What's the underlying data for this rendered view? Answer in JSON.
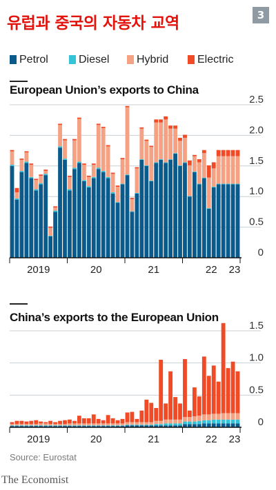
{
  "header": {
    "title": "유럽과 중국의 자동차 교역",
    "figure_number": "3"
  },
  "legend": [
    {
      "label": "Petrol",
      "color": "#0b5a8c"
    },
    {
      "label": "Diesel",
      "color": "#35c3d8"
    },
    {
      "label": "Hybrid",
      "color": "#f5a183"
    },
    {
      "label": "Electric",
      "color": "#f04a26"
    }
  ],
  "chart_data": [
    {
      "type": "bar",
      "stacked": true,
      "title": "European Union’s exports to China",
      "xlabel": "",
      "ylabel": "",
      "ylim": [
        0,
        2.5
      ],
      "yticks": [
        0,
        0.5,
        1.0,
        1.5,
        2.0,
        2.5
      ],
      "ytick_labels": [
        "0",
        "0.5",
        "1.0",
        "1.5",
        "2.0",
        "2.5"
      ],
      "x_labels": [
        "2019",
        "20",
        "21",
        "22",
        "23"
      ],
      "x_label_index": [
        0,
        12,
        24,
        36,
        48
      ],
      "grid": true,
      "colors": {
        "Petrol": "#0b5a8c",
        "Diesel": "#35c3d8",
        "Hybrid": "#f5a183",
        "Electric": "#f04a26"
      },
      "series": [
        {
          "name": "Petrol",
          "values": [
            1.5,
            0.95,
            1.4,
            1.55,
            1.3,
            1.1,
            1.2,
            1.35,
            0.35,
            0.75,
            1.8,
            1.6,
            1.1,
            1.45,
            1.55,
            1.25,
            1.15,
            1.3,
            1.45,
            1.4,
            1.3,
            1.05,
            0.9,
            1.2,
            1.35,
            0.75,
            1.05,
            1.6,
            1.5,
            1.25,
            1.55,
            1.6,
            1.55,
            1.6,
            1.7,
            1.5,
            1.55,
            1.0,
            1.4,
            1.2,
            1.3,
            0.8,
            1.15,
            1.2,
            1.2,
            1.2,
            1.2,
            1.2
          ]
        },
        {
          "name": "Diesel",
          "values": [
            0.02,
            0.02,
            0.02,
            0.02,
            0.02,
            0.02,
            0.02,
            0.02,
            0.01,
            0.02,
            0.02,
            0.02,
            0.02,
            0.02,
            0.02,
            0.02,
            0.02,
            0.02,
            0.02,
            0.02,
            0.02,
            0.02,
            0.01,
            0.01,
            0.01,
            0.01,
            0.01,
            0.01,
            0.01,
            0.01,
            0.01,
            0.01,
            0.01,
            0.01,
            0.01,
            0.01,
            0.01,
            0.01,
            0.01,
            0.01,
            0.01,
            0.01,
            0.01,
            0.01,
            0.01,
            0.01,
            0.01,
            0.01
          ]
        },
        {
          "name": "Hybrid",
          "values": [
            0.22,
            0.1,
            0.18,
            0.15,
            0.2,
            0.15,
            0.12,
            0.05,
            0.13,
            0.05,
            0.35,
            0.3,
            0.2,
            0.45,
            0.7,
            0.25,
            0.15,
            0.2,
            0.7,
            0.7,
            0.5,
            0.3,
            0.25,
            0.4,
            1.1,
            0.2,
            0.4,
            0.5,
            0.4,
            0.55,
            0.65,
            0.6,
            0.7,
            0.5,
            0.4,
            0.4,
            0.4,
            0.5,
            0.25,
            0.35,
            0.4,
            0.5,
            0.3,
            0.45,
            0.45,
            0.45,
            0.45,
            0.45
          ]
        },
        {
          "name": "Electric",
          "values": [
            0.02,
            0.07,
            0.02,
            0.02,
            0.02,
            0.02,
            0.02,
            0.02,
            0.02,
            0.02,
            0.02,
            0.02,
            0.02,
            0.02,
            0.02,
            0.02,
            0.02,
            0.02,
            0.02,
            0.02,
            0.02,
            0.02,
            0.02,
            0.02,
            0.02,
            0.02,
            0.02,
            0.02,
            0.02,
            0.02,
            0.05,
            0.05,
            0.05,
            0.05,
            0.05,
            0.05,
            0.05,
            0.08,
            0.02,
            0.05,
            0.05,
            0.2,
            0.1,
            0.1,
            0.1,
            0.1,
            0.1,
            0.1
          ]
        }
      ]
    },
    {
      "type": "bar",
      "stacked": true,
      "title": "China’s exports to the European Union",
      "xlabel": "",
      "ylabel": "",
      "ylim": [
        0,
        1.5
      ],
      "yticks": [
        0,
        0.5,
        1.0,
        1.5
      ],
      "ytick_labels": [
        "0",
        "0.5",
        "1.0",
        "1.5"
      ],
      "x_labels": [
        "2019",
        "20",
        "21",
        "22",
        "23"
      ],
      "x_label_index": [
        0,
        12,
        24,
        36,
        48
      ],
      "grid": true,
      "colors": {
        "Petrol": "#0b5a8c",
        "Diesel": "#35c3d8",
        "Hybrid": "#f5a183",
        "Electric": "#f04a26"
      },
      "series": [
        {
          "name": "Petrol",
          "values": [
            0.02,
            0.02,
            0.02,
            0.02,
            0.02,
            0.02,
            0.02,
            0.02,
            0.02,
            0.02,
            0.02,
            0.02,
            0.02,
            0.02,
            0.02,
            0.02,
            0.02,
            0.02,
            0.02,
            0.02,
            0.02,
            0.02,
            0.02,
            0.02,
            0.03,
            0.03,
            0.03,
            0.03,
            0.03,
            0.03,
            0.03,
            0.03,
            0.03,
            0.03,
            0.03,
            0.03,
            0.05,
            0.05,
            0.05,
            0.05,
            0.06,
            0.06,
            0.06,
            0.06,
            0.06,
            0.06,
            0.06,
            0.06
          ]
        },
        {
          "name": "Diesel",
          "values": [
            0.01,
            0.01,
            0.01,
            0.01,
            0.01,
            0.01,
            0.01,
            0.01,
            0.01,
            0.01,
            0.01,
            0.01,
            0.01,
            0.01,
            0.01,
            0.01,
            0.01,
            0.01,
            0.01,
            0.01,
            0.01,
            0.01,
            0.01,
            0.01,
            0.01,
            0.01,
            0.01,
            0.01,
            0.01,
            0.01,
            0.02,
            0.02,
            0.03,
            0.03,
            0.03,
            0.03,
            0.04,
            0.04,
            0.04,
            0.05,
            0.05,
            0.05,
            0.06,
            0.06,
            0.06,
            0.06,
            0.06,
            0.06
          ]
        },
        {
          "name": "Hybrid",
          "values": [
            0.02,
            0.02,
            0.02,
            0.02,
            0.02,
            0.02,
            0.03,
            0.03,
            0.02,
            0.02,
            0.02,
            0.02,
            0.03,
            0.03,
            0.03,
            0.03,
            0.03,
            0.03,
            0.03,
            0.03,
            0.03,
            0.03,
            0.03,
            0.03,
            0.04,
            0.04,
            0.04,
            0.04,
            0.04,
            0.04,
            0.05,
            0.05,
            0.06,
            0.06,
            0.06,
            0.06,
            0.07,
            0.07,
            0.08,
            0.08,
            0.09,
            0.09,
            0.09,
            0.09,
            0.1,
            0.1,
            0.1,
            0.1
          ]
        },
        {
          "name": "Electric",
          "values": [
            0.03,
            0.05,
            0.05,
            0.04,
            0.05,
            0.06,
            0.03,
            0.02,
            0.05,
            0.03,
            0.05,
            0.06,
            0.06,
            0.04,
            0.12,
            0.08,
            0.08,
            0.14,
            0.07,
            0.05,
            0.13,
            0.08,
            0.05,
            0.07,
            0.15,
            0.16,
            0.05,
            0.18,
            0.35,
            0.3,
            0.2,
            0.95,
            0.25,
            0.75,
            0.35,
            0.25,
            0.9,
            0.1,
            0.45,
            0.3,
            0.9,
            0.6,
            0.75,
            0.5,
            1.4,
            0.7,
            0.8,
            0.65
          ]
        }
      ]
    }
  ],
  "footer": {
    "source": "Source: Eurostat",
    "brand": "The Economist"
  }
}
